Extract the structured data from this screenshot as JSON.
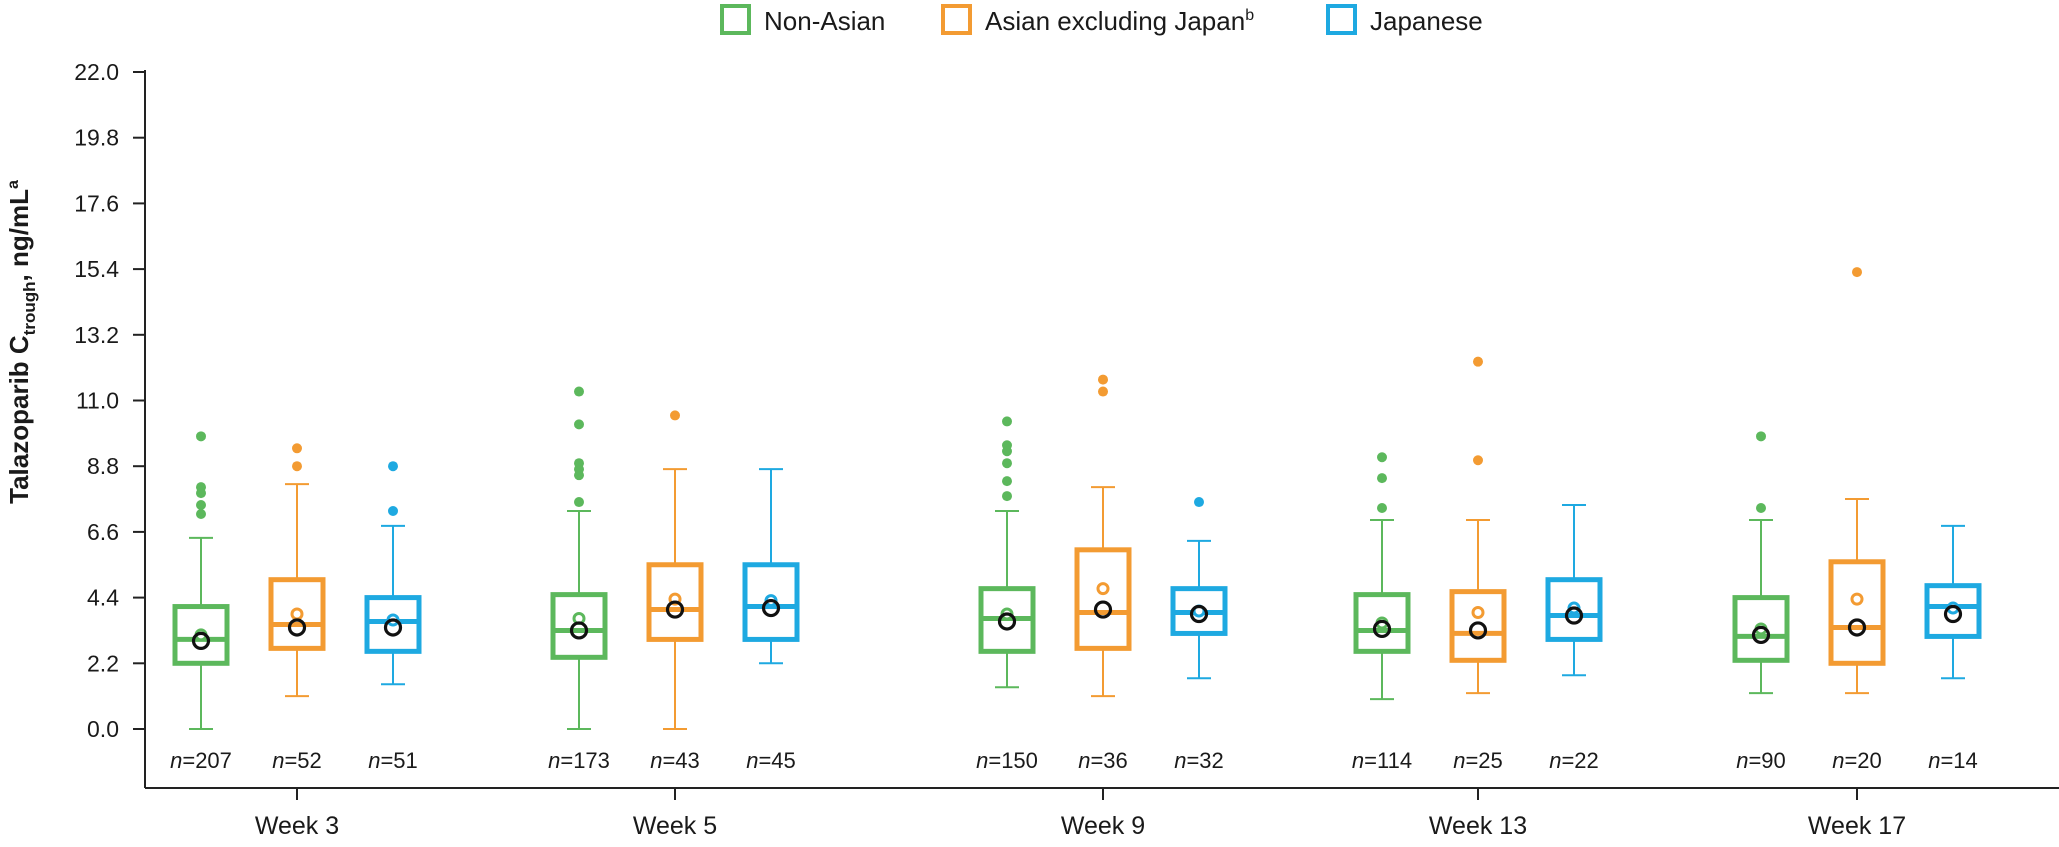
{
  "chart_data": {
    "type": "box",
    "ylabel": {
      "main": "Talazoparib C",
      "sub": "trough",
      "rest": ", ng/mL",
      "sup": "a"
    },
    "ylim": [
      0,
      22
    ],
    "yticks": [
      "0.0",
      "2.2",
      "4.4",
      "6.6",
      "8.8",
      "11.0",
      "13.2",
      "15.4",
      "17.6",
      "19.8",
      "22.0"
    ],
    "categories": [
      "Week 3",
      "Week 5",
      "Week 9",
      "Week 13",
      "Week 17"
    ],
    "legend_position": "top-center",
    "series": [
      {
        "name": "Non-Asian",
        "name_sup": "",
        "color": "#5cb85c",
        "boxes": [
          {
            "whisker_low": 0.0,
            "q1": 2.2,
            "median": 3.0,
            "q3": 4.1,
            "whisker_high": 6.4,
            "geo_mean": 2.95,
            "arith_mean": 3.15,
            "outliers": [
              7.2,
              7.5,
              7.9,
              8.1,
              9.8
            ],
            "n": "n=207"
          },
          {
            "whisker_low": 0.0,
            "q1": 2.4,
            "median": 3.3,
            "q3": 4.5,
            "whisker_high": 7.3,
            "geo_mean": 3.3,
            "arith_mean": 3.7,
            "outliers": [
              7.6,
              8.5,
              8.7,
              8.9,
              10.2,
              11.3
            ],
            "n": "n=173"
          },
          {
            "whisker_low": 1.4,
            "q1": 2.6,
            "median": 3.7,
            "q3": 4.7,
            "whisker_high": 7.3,
            "geo_mean": 3.6,
            "arith_mean": 3.85,
            "outliers": [
              7.8,
              8.3,
              8.9,
              9.3,
              9.5,
              10.3
            ],
            "n": "n=150"
          },
          {
            "whisker_low": 1.0,
            "q1": 2.6,
            "median": 3.3,
            "q3": 4.5,
            "whisker_high": 7.0,
            "geo_mean": 3.35,
            "arith_mean": 3.55,
            "outliers": [
              7.4,
              8.4,
              9.1
            ],
            "n": "n=114"
          },
          {
            "whisker_low": 1.2,
            "q1": 2.3,
            "median": 3.1,
            "q3": 4.4,
            "whisker_high": 7.0,
            "geo_mean": 3.15,
            "arith_mean": 3.35,
            "outliers": [
              7.4,
              9.8
            ],
            "n": "n=90"
          }
        ]
      },
      {
        "name": "Asian excluding Japan",
        "name_sup": "b",
        "color": "#f39b32",
        "boxes": [
          {
            "whisker_low": 1.1,
            "q1": 2.7,
            "median": 3.5,
            "q3": 5.0,
            "whisker_high": 8.2,
            "geo_mean": 3.4,
            "arith_mean": 3.85,
            "outliers": [
              8.8,
              9.4
            ],
            "n": "n=52"
          },
          {
            "whisker_low": 0.0,
            "q1": 3.0,
            "median": 4.0,
            "q3": 5.5,
            "whisker_high": 8.7,
            "geo_mean": 4.0,
            "arith_mean": 4.35,
            "outliers": [
              10.5
            ],
            "n": "n=43"
          },
          {
            "whisker_low": 1.1,
            "q1": 2.7,
            "median": 3.9,
            "q3": 6.0,
            "whisker_high": 8.1,
            "geo_mean": 4.0,
            "arith_mean": 4.7,
            "outliers": [
              11.3,
              11.7
            ],
            "n": "n=36"
          },
          {
            "whisker_low": 1.2,
            "q1": 2.3,
            "median": 3.2,
            "q3": 4.6,
            "whisker_high": 7.0,
            "geo_mean": 3.3,
            "arith_mean": 3.9,
            "outliers": [
              9.0,
              12.3
            ],
            "n": "n=25"
          },
          {
            "whisker_low": 1.2,
            "q1": 2.2,
            "median": 3.4,
            "q3": 5.6,
            "whisker_high": 7.7,
            "geo_mean": 3.4,
            "arith_mean": 4.35,
            "outliers": [
              15.3
            ],
            "n": "n=20"
          }
        ]
      },
      {
        "name": "Japanese",
        "name_sup": "",
        "color": "#1ea9e1",
        "boxes": [
          {
            "whisker_low": 1.5,
            "q1": 2.6,
            "median": 3.6,
            "q3": 4.4,
            "whisker_high": 6.8,
            "geo_mean": 3.4,
            "arith_mean": 3.65,
            "outliers": [
              7.3,
              8.8
            ],
            "n": "n=51"
          },
          {
            "whisker_low": 2.2,
            "q1": 3.0,
            "median": 4.1,
            "q3": 5.5,
            "whisker_high": 8.7,
            "geo_mean": 4.05,
            "arith_mean": 4.3,
            "outliers": [],
            "n": "n=45"
          },
          {
            "whisker_low": 1.7,
            "q1": 3.2,
            "median": 3.9,
            "q3": 4.7,
            "whisker_high": 6.3,
            "geo_mean": 3.85,
            "arith_mean": 3.95,
            "outliers": [
              7.6
            ],
            "n": "n=32"
          },
          {
            "whisker_low": 1.8,
            "q1": 3.0,
            "median": 3.8,
            "q3": 5.0,
            "whisker_high": 7.5,
            "geo_mean": 3.8,
            "arith_mean": 4.05,
            "outliers": [],
            "n": "n=22"
          },
          {
            "whisker_low": 1.7,
            "q1": 3.1,
            "median": 4.1,
            "q3": 4.8,
            "whisker_high": 6.8,
            "geo_mean": 3.85,
            "arith_mean": 4.05,
            "outliers": [],
            "n": "n=14"
          }
        ]
      }
    ]
  }
}
